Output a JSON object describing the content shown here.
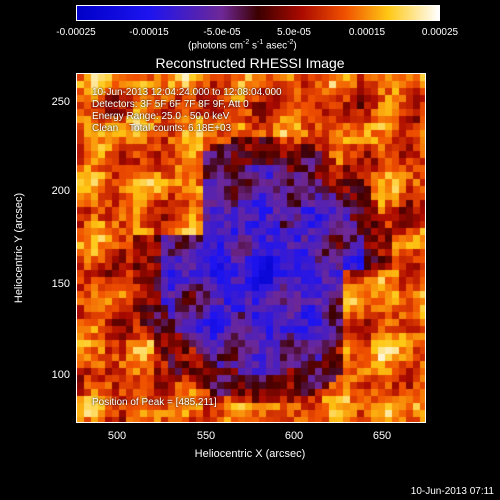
{
  "colorbar": {
    "ticks": [
      "-0.00025",
      "-0.00015",
      "-5.0e-05",
      "5.0e-05",
      "0.00015",
      "0.00025"
    ],
    "unit_prefix": "(photons cm",
    "unit_exp1": "-2",
    "unit_mid": " s",
    "unit_exp2": "-1",
    "unit_mid2": " asec",
    "unit_exp3": "-2",
    "unit_suffix": ")"
  },
  "title": "Reconstructed RHESSI Image",
  "annotations": {
    "time_range": "10-Jun-2013 12:04:24.000 to 12:08:04.000",
    "detectors": "Detectors: 3F 5F 6F 7F 8F 9F, Att 0",
    "energy_range": "Energy Range: 25.0 - 50.0 keV",
    "clean_counts": "Clean    Total counts: 6.18E+03",
    "peak_position": "Position of Peak = [485,211]"
  },
  "axes": {
    "x_label": "Heliocentric X (arcsec)",
    "y_label": "Heliocentric Y (arcsec)",
    "x_ticks": [
      "500",
      "550",
      "600",
      "650"
    ],
    "y_ticks": [
      "250",
      "200",
      "150",
      "100"
    ]
  },
  "timestamp": "10-Jun-2013 07:11",
  "colors": {
    "background": "#000000",
    "axis": "#ffffff"
  },
  "colormap": "blue-purple-red-yellow-white (RHESSI)"
}
